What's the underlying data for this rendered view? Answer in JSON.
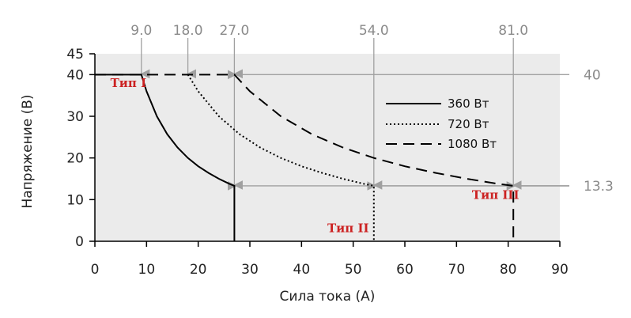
{
  "chart_data": {
    "type": "line",
    "title": "",
    "xlabel": "Сила тока (А)",
    "ylabel": "Напряжение (В)",
    "xlim": [
      0,
      90
    ],
    "ylim": [
      0,
      45
    ],
    "x_ticks": [
      0,
      10,
      20,
      30,
      40,
      50,
      60,
      70,
      80,
      90
    ],
    "y_ticks": [
      0,
      10,
      20,
      30,
      40,
      45
    ],
    "grid": false,
    "plot_background": "#ebebeb",
    "legend_position": "top-right",
    "series": [
      {
        "name": "360 Вт",
        "style": "solid",
        "power_w": 360,
        "x": [
          0,
          9,
          10,
          12,
          14,
          16,
          18,
          20,
          22,
          24,
          26,
          27,
          27
        ],
        "y": [
          40,
          40,
          36,
          30,
          25.7,
          22.5,
          20,
          18,
          16.4,
          15,
          13.8,
          13.3,
          0
        ]
      },
      {
        "name": "720 Вт",
        "style": "dotted",
        "power_w": 720,
        "x": [
          18,
          20,
          24,
          28,
          32,
          36,
          40,
          44,
          48,
          52,
          54,
          54
        ],
        "y": [
          40,
          36,
          30,
          25.7,
          22.5,
          20,
          18,
          16.4,
          15,
          13.8,
          13.3,
          0
        ]
      },
      {
        "name": "1080 Вт",
        "style": "dashed",
        "power_w": 1080,
        "x": [
          0,
          27,
          30,
          36,
          42,
          48,
          54,
          60,
          66,
          72,
          78,
          81,
          81
        ],
        "y": [
          40,
          40,
          36,
          30,
          25.7,
          22.5,
          20,
          18,
          16.4,
          15,
          13.8,
          13.3,
          0
        ]
      }
    ],
    "top_annotations": [
      {
        "x": 9,
        "label": "9.0",
        "y_target": 40
      },
      {
        "x": 18,
        "label": "18.0",
        "y_target": 40
      },
      {
        "x": 27,
        "label": "27.0",
        "y_target": 40
      },
      {
        "x": 27,
        "label": "",
        "y_target": 13.3
      },
      {
        "x": 54,
        "label": "54.0",
        "y_target": 13.3
      },
      {
        "x": 81,
        "label": "81.0",
        "y_target": 13.3
      }
    ],
    "right_annotations": [
      {
        "y": 40,
        "label": "40",
        "x_target": 27
      },
      {
        "y": 13.3,
        "label": "13.3",
        "x_target": 27
      },
      {
        "y": 13.3,
        "label": "",
        "x_target": 54
      },
      {
        "y": 13.3,
        "label": "",
        "x_target": 81
      }
    ],
    "type_labels": [
      {
        "text": "Тип I",
        "x": 3,
        "y": 37
      },
      {
        "text": "Тип II",
        "x": 45,
        "y": 2.2
      },
      {
        "text": "Тип III",
        "x": 73,
        "y": 10.2
      }
    ],
    "colors": {
      "annotation": "#a0a0a0",
      "series_line": "#000000",
      "type_label": "#cc2222"
    }
  }
}
